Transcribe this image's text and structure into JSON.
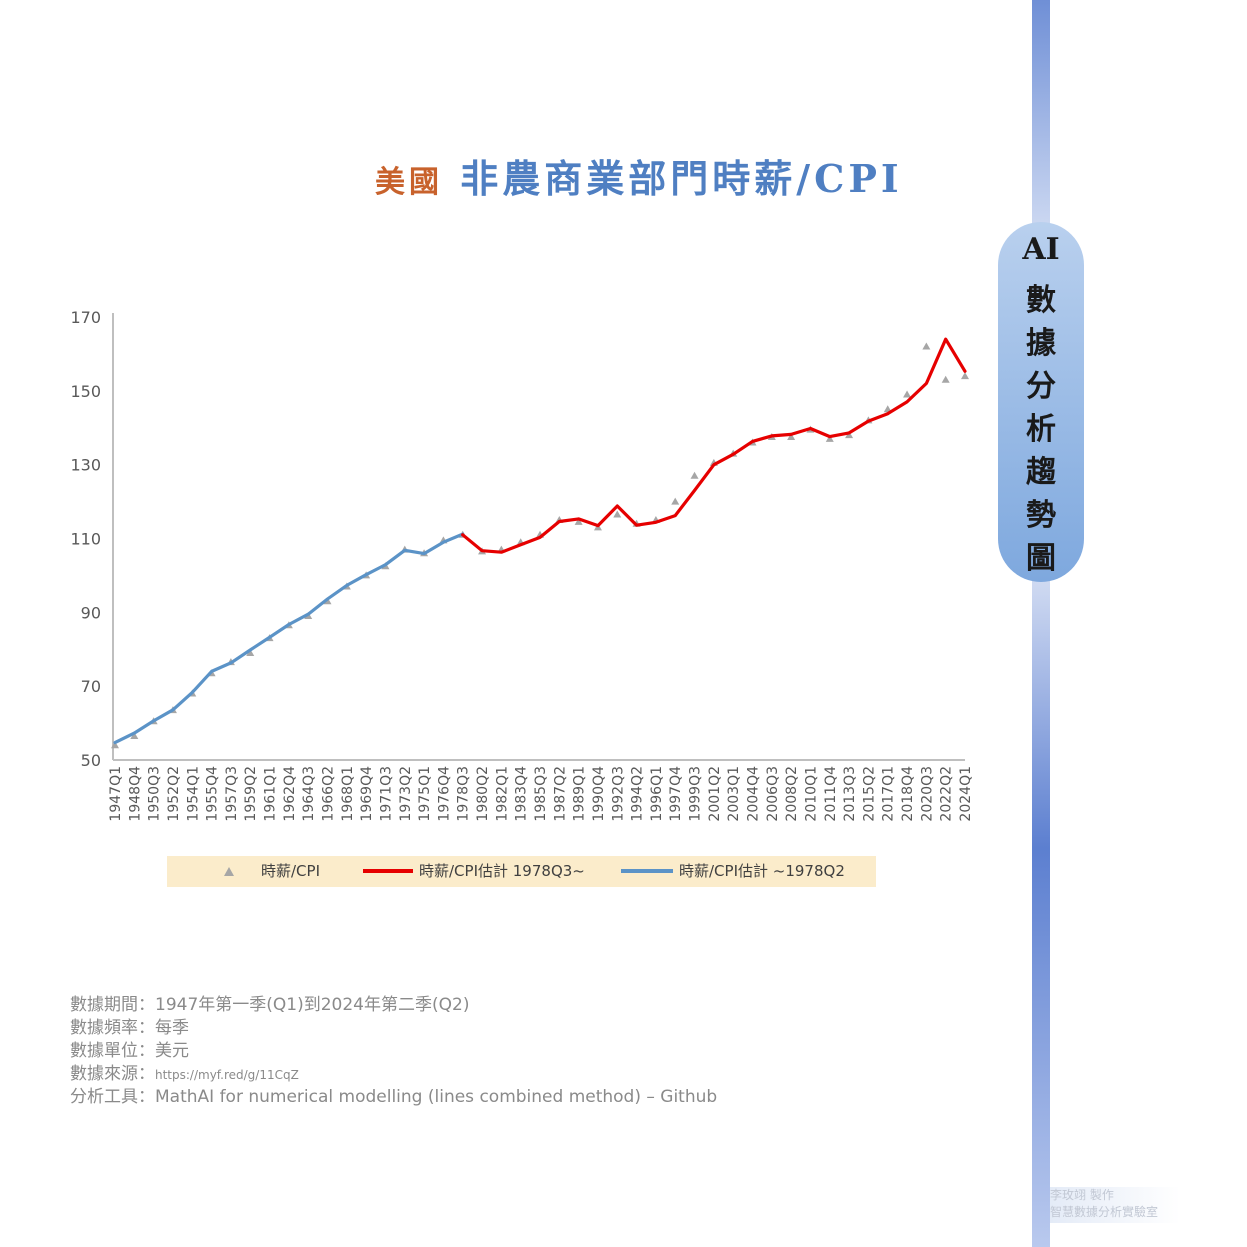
{
  "title": {
    "part1": "美國",
    "part2": "非農商業部門時薪/CPI"
  },
  "side_label": [
    "AI",
    "數",
    "據",
    "分",
    "析",
    "趨",
    "勢",
    "圖"
  ],
  "meta": {
    "period": "數據期間：1947年第一季(Q1)到2024年第二季(Q2)",
    "frequency": "數據頻率：每季",
    "unit": "數據單位：美元",
    "source_label": "數據來源：",
    "source_url": "https://myf.red/g/11CqZ",
    "tool": "分析工具：MathAI for numerical modelling (lines combined method) – Github"
  },
  "credit": {
    "line1": "李玫翊 製作",
    "line2": "智慧數據分析實驗室"
  },
  "chart_data": {
    "type": "line",
    "ylim": [
      50,
      170
    ],
    "yticks": [
      50,
      70,
      90,
      110,
      130,
      150,
      170
    ],
    "xlabels": [
      "1947Q1",
      "1948Q4",
      "1950Q3",
      "1952Q2",
      "1954Q1",
      "1955Q4",
      "1957Q3",
      "1959Q2",
      "1961Q1",
      "1962Q4",
      "1964Q3",
      "1966Q2",
      "1968Q1",
      "1969Q4",
      "1971Q3",
      "1973Q2",
      "1975Q1",
      "1976Q4",
      "1978Q3",
      "1980Q2",
      "1982Q1",
      "1983Q4",
      "1985Q3",
      "1987Q2",
      "1989Q1",
      "1990Q4",
      "1992Q3",
      "1994Q2",
      "1996Q1",
      "1997Q4",
      "1999Q3",
      "2001Q2",
      "2003Q1",
      "2004Q4",
      "2006Q3",
      "2008Q2",
      "2010Q1",
      "2011Q4",
      "2013Q3",
      "2015Q2",
      "2017Q1",
      "2018Q4",
      "2020Q3",
      "2022Q2",
      "2024Q1"
    ],
    "legend_placement": "bottom",
    "series": [
      {
        "name": "時薪/CPI",
        "style": "triangle",
        "color": "#a6a6a6",
        "points": [
          [
            "1947Q1",
            54
          ],
          [
            "1948Q4",
            56.5
          ],
          [
            "1950Q3",
            60.5
          ],
          [
            "1952Q2",
            63.5
          ],
          [
            "1954Q1",
            68
          ],
          [
            "1955Q4",
            73.5
          ],
          [
            "1957Q3",
            76.5
          ],
          [
            "1959Q2",
            79
          ],
          [
            "1961Q1",
            83
          ],
          [
            "1962Q4",
            86.5
          ],
          [
            "1964Q3",
            89
          ],
          [
            "1966Q2",
            93
          ],
          [
            "1968Q1",
            97
          ],
          [
            "1969Q4",
            100
          ],
          [
            "1971Q3",
            102.5
          ],
          [
            "1973Q2",
            107
          ],
          [
            "1975Q1",
            106
          ],
          [
            "1976Q4",
            109.5
          ],
          [
            "1978Q3",
            111
          ],
          [
            "1980Q2",
            106.5
          ],
          [
            "1982Q1",
            107
          ],
          [
            "1983Q4",
            109
          ],
          [
            "1985Q3",
            111
          ],
          [
            "1987Q2",
            115
          ],
          [
            "1989Q1",
            114.5
          ],
          [
            "1990Q4",
            113
          ],
          [
            "1992Q3",
            116.5
          ],
          [
            "1994Q2",
            114
          ],
          [
            "1996Q1",
            115
          ],
          [
            "1997Q4",
            120
          ],
          [
            "1999Q3",
            127
          ],
          [
            "2001Q2",
            130.5
          ],
          [
            "2003Q1",
            133
          ],
          [
            "2004Q4",
            136
          ],
          [
            "2006Q3",
            137.5
          ],
          [
            "2008Q2",
            137.5
          ],
          [
            "2010Q1",
            139.5
          ],
          [
            "2011Q4",
            137
          ],
          [
            "2013Q3",
            138
          ],
          [
            "2015Q2",
            142
          ],
          [
            "2017Q1",
            145
          ],
          [
            "2018Q4",
            149
          ],
          [
            "2020Q3",
            162
          ],
          [
            "2022Q2",
            153
          ],
          [
            "2024Q1",
            154
          ]
        ]
      },
      {
        "name": "時薪/CPI估計 1978Q3~",
        "style": "line",
        "color": "#e60000",
        "points": [
          [
            "1978Q3",
            111
          ],
          [
            "1980Q2",
            106.7
          ],
          [
            "1982Q1",
            106.3
          ],
          [
            "1983Q4",
            108.3
          ],
          [
            "1985Q3",
            110.3
          ],
          [
            "1987Q2",
            114.6
          ],
          [
            "1989Q1",
            115.3
          ],
          [
            "1990Q4",
            113.5
          ],
          [
            "1992Q3",
            118.8
          ],
          [
            "1994Q2",
            113.6
          ],
          [
            "1996Q1",
            114.4
          ],
          [
            "1997Q4",
            116.2
          ],
          [
            "1999Q3",
            123
          ],
          [
            "2001Q2",
            130
          ],
          [
            "2003Q1",
            132.8
          ],
          [
            "2004Q4",
            136.3
          ],
          [
            "2006Q3",
            137.8
          ],
          [
            "2008Q2",
            138.2
          ],
          [
            "2010Q1",
            139.8
          ],
          [
            "2011Q4",
            137.6
          ],
          [
            "2013Q3",
            138.6
          ],
          [
            "2015Q2",
            141.8
          ],
          [
            "2017Q1",
            143.8
          ],
          [
            "2018Q4",
            147
          ],
          [
            "2020Q3",
            152
          ],
          [
            "2022Q2",
            164
          ],
          [
            "2024Q1",
            155.3
          ]
        ]
      },
      {
        "name": "時薪/CPI估計 ~1978Q2",
        "style": "line",
        "color": "#5b93c7",
        "points": [
          [
            "1947Q1",
            54.7
          ],
          [
            "1948Q4",
            57.3
          ],
          [
            "1950Q3",
            60.6
          ],
          [
            "1952Q2",
            63.6
          ],
          [
            "1954Q1",
            68.3
          ],
          [
            "1955Q4",
            74
          ],
          [
            "1957Q3",
            76.3
          ],
          [
            "1959Q2",
            79.8
          ],
          [
            "1961Q1",
            83.2
          ],
          [
            "1962Q4",
            86.7
          ],
          [
            "1964Q3",
            89.5
          ],
          [
            "1966Q2",
            93.6
          ],
          [
            "1968Q1",
            97.3
          ],
          [
            "1969Q4",
            100.2
          ],
          [
            "1971Q3",
            102.9
          ],
          [
            "1973Q2",
            106.8
          ],
          [
            "1975Q1",
            105.9
          ],
          [
            "1976Q4",
            109
          ],
          [
            "1978Q3",
            111.2
          ]
        ]
      }
    ]
  }
}
